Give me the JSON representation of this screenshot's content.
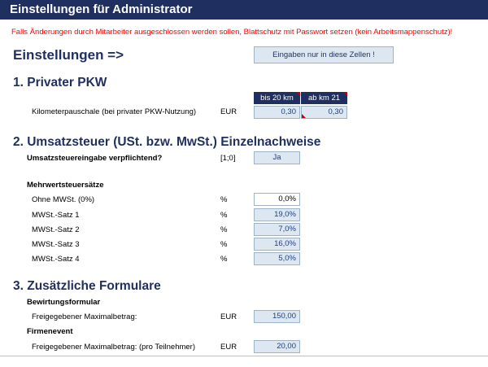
{
  "title": "Einstellungen für Administrator",
  "warning": "Falls Änderungen durch Mitarbeiter ausgeschlossen werden sollen, Blattschutz mit Passwort setzen (kein Arbeitsmappenschutz)!",
  "settings_heading": "Einstellungen =>",
  "input_note": "Eingaben nur in diese Zellen !",
  "pkw": {
    "heading": "1. Privater PKW",
    "col1": "bis 20 km",
    "col2": "ab km 21",
    "label": "Kilometerpauschale (bei privater PKW-Nutzung)",
    "unit": "EUR",
    "value1": "0,30",
    "value2": "0,30"
  },
  "ust": {
    "heading": "2. Umsatzsteuer (USt. bzw. MwSt.) Einzelnachweise",
    "question": "Umsatzsteuereingabe verpflichtend?",
    "question_unit": "[1;0]",
    "question_value": "Ja",
    "rates_heading": "Mehrwertsteuersätze",
    "rates": [
      {
        "label": "Ohne MWSt. (0%)",
        "unit": "%",
        "value": "0,0%"
      },
      {
        "label": "MWSt.-Satz 1",
        "unit": "%",
        "value": "19,0%"
      },
      {
        "label": "MWSt.-Satz 2",
        "unit": "%",
        "value": "7,0%"
      },
      {
        "label": "MWSt.-Satz 3",
        "unit": "%",
        "value": "16,0%"
      },
      {
        "label": "MWSt.-Satz 4",
        "unit": "%",
        "value": "5,0%"
      }
    ]
  },
  "forms": {
    "heading": "3. Zusätzliche Formulare",
    "bewirtung_heading": "Bewirtungsformular",
    "bewirtung_label": "Freigegebener Maximalbetrag:",
    "bewirtung_unit": "EUR",
    "bewirtung_value": "150,00",
    "firmen_heading": "Firmenevent",
    "firmen_label": "Freigegebener Maximalbetrag: (pro Teilnehmer)",
    "firmen_unit": "EUR",
    "firmen_value": "20,00"
  }
}
